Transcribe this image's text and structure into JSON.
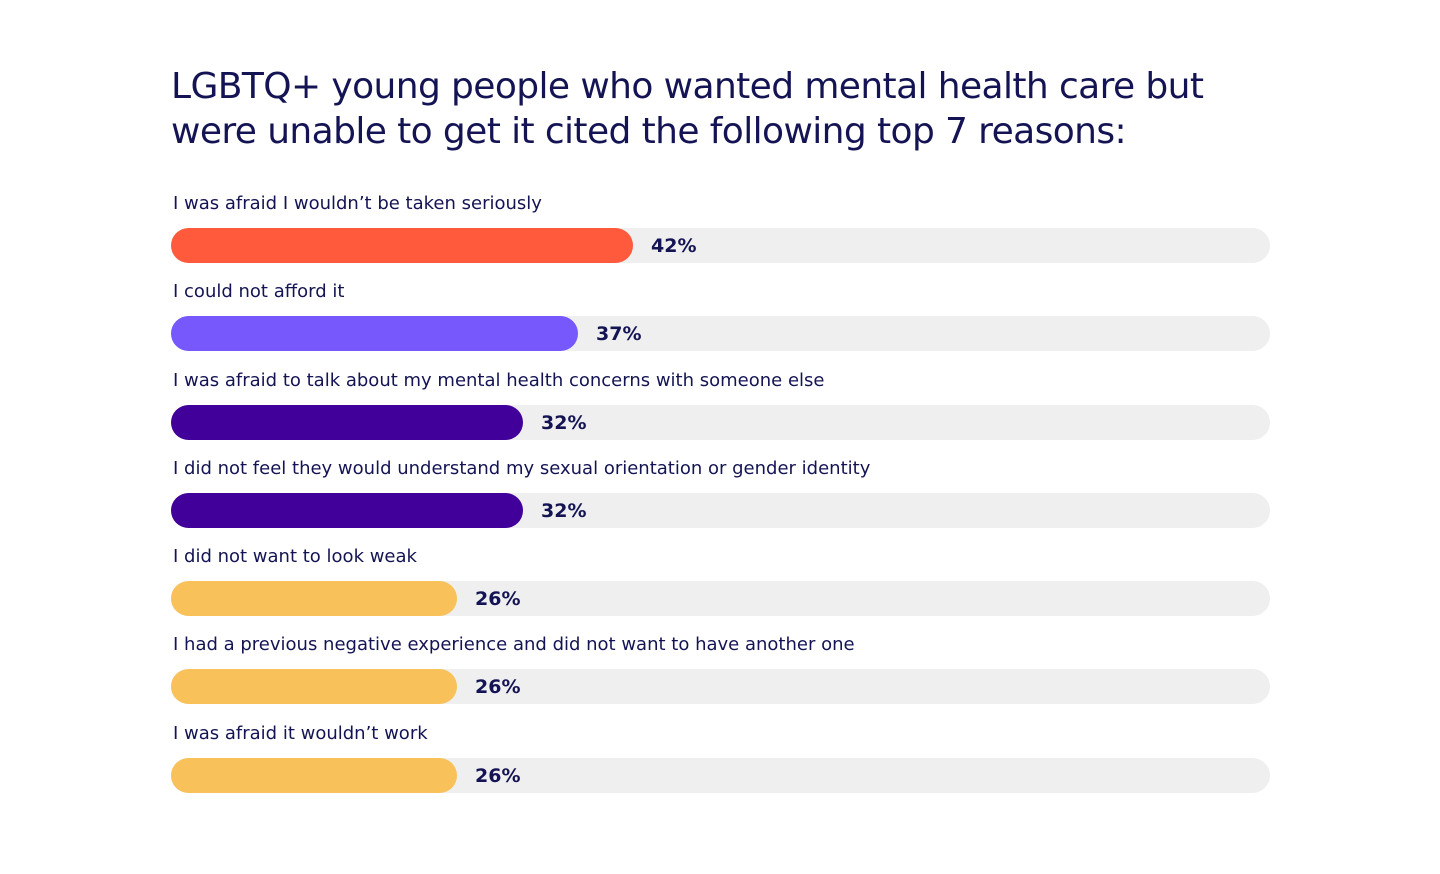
{
  "chart_data": {
    "type": "bar",
    "orientation": "horizontal",
    "title": "LGBTQ+ young people who wanted mental health care but were unable to get it cited the following top 7 reasons:",
    "categories": [
      "I was afraid I wouldn’t be taken seriously",
      "I could not afford it",
      "I was afraid to talk about my mental health concerns with someone else",
      "I did not feel they would understand my sexual orientation or gender identity",
      "I did not want to look weak",
      "I had a previous negative experience and did not want to have another one",
      "I was afraid it wouldn’t work"
    ],
    "values": [
      42,
      37,
      32,
      32,
      26,
      26,
      26
    ],
    "value_labels": [
      "42%",
      "37%",
      "32%",
      "32%",
      "26%",
      "26%",
      "26%"
    ],
    "colors": [
      "#ff5a3c",
      "#7658fd",
      "#42009a",
      "#42009a",
      "#f8c159",
      "#f8c159",
      "#f8c159"
    ],
    "track_color": "#efefef",
    "xlim": [
      0,
      100
    ],
    "unit": "%",
    "grid": false,
    "legend": "none"
  }
}
